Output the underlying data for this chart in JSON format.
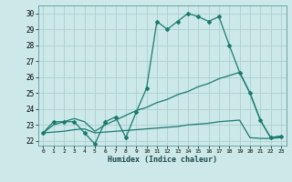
{
  "xlabel": "Humidex (Indice chaleur)",
  "x": [
    0,
    1,
    2,
    3,
    4,
    5,
    6,
    7,
    8,
    9,
    10,
    11,
    12,
    13,
    14,
    15,
    16,
    17,
    18,
    19,
    20,
    21,
    22,
    23
  ],
  "line1": [
    22.5,
    23.2,
    23.2,
    23.2,
    22.5,
    21.8,
    23.2,
    23.5,
    22.2,
    23.8,
    25.3,
    29.5,
    29.0,
    29.5,
    30.0,
    29.8,
    29.5,
    29.8,
    28.0,
    26.3,
    25.0,
    23.3,
    22.2,
    22.3
  ],
  "line2": [
    22.5,
    23.0,
    23.2,
    23.4,
    23.2,
    22.6,
    23.0,
    23.3,
    23.6,
    23.9,
    24.1,
    24.4,
    24.6,
    24.9,
    25.1,
    25.4,
    25.6,
    25.9,
    26.1,
    26.3,
    25.0,
    23.3,
    22.2,
    22.3
  ],
  "line3": [
    22.5,
    22.55,
    22.6,
    22.7,
    22.75,
    22.5,
    22.55,
    22.6,
    22.65,
    22.7,
    22.75,
    22.8,
    22.85,
    22.9,
    23.0,
    23.05,
    23.1,
    23.2,
    23.25,
    23.3,
    22.2,
    22.15,
    22.15,
    22.2
  ],
  "color": "#1a7a6e",
  "bg_color": "#cce8e8",
  "grid_color": "#aad0d0",
  "ylim": [
    21.7,
    30.5
  ],
  "xlim": [
    -0.5,
    23.5
  ],
  "yticks": [
    22,
    23,
    24,
    25,
    26,
    27,
    28,
    29,
    30
  ],
  "xticks": [
    0,
    1,
    2,
    3,
    4,
    5,
    6,
    7,
    8,
    9,
    10,
    11,
    12,
    13,
    14,
    15,
    16,
    17,
    18,
    19,
    20,
    21,
    22,
    23
  ],
  "marker": "D",
  "markersize": 2.0,
  "linewidth": 0.9
}
